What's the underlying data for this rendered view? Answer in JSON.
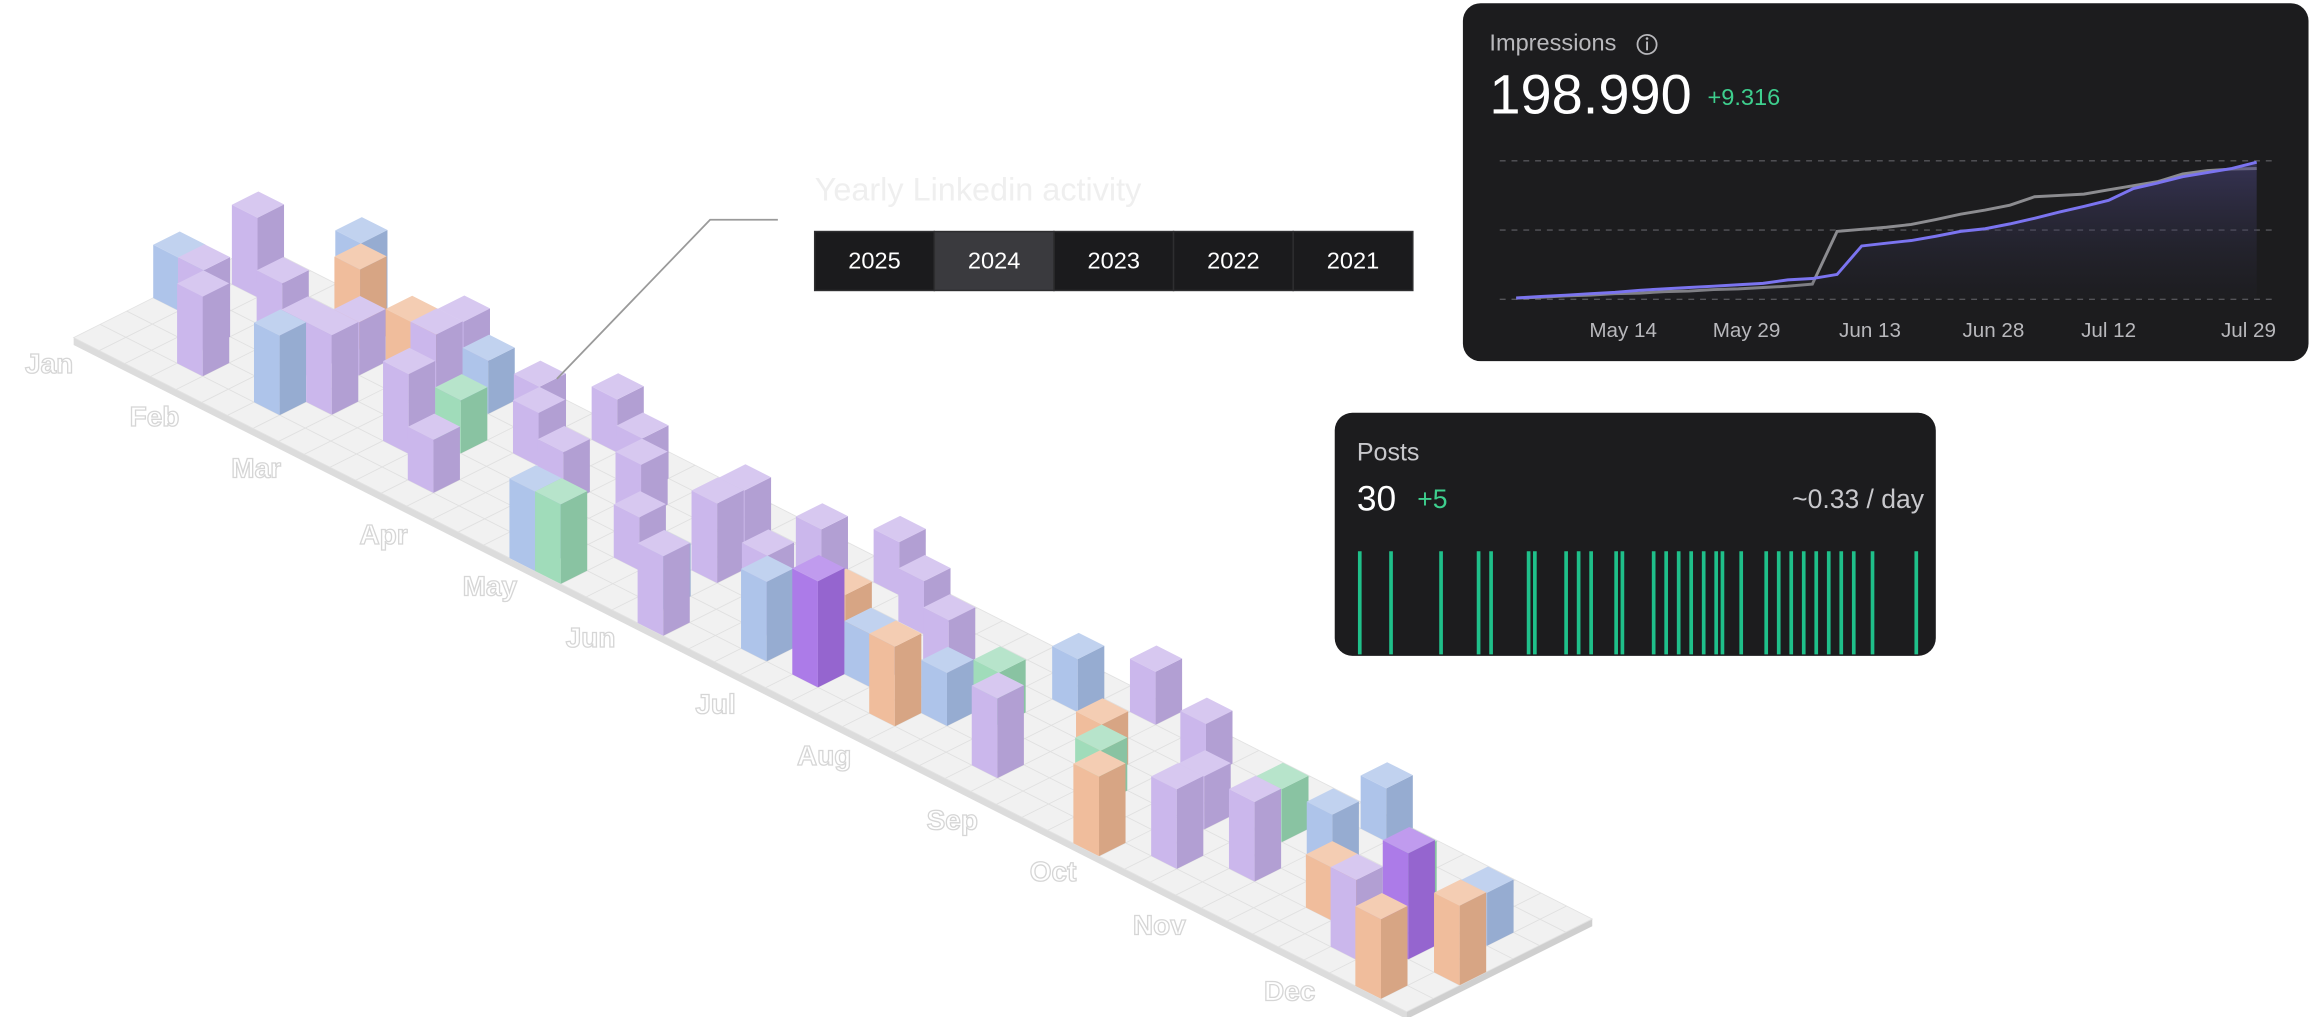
{
  "heading": "Yearly Linkedin activity",
  "year_tabs": {
    "items": [
      "2025",
      "2024",
      "2023",
      "2022",
      "2021"
    ],
    "selected_index": 1
  },
  "calendar": {
    "months": [
      "Jan",
      "Feb",
      "Mar",
      "Apr",
      "May",
      "Jun",
      "Jul",
      "Aug",
      "Sep",
      "Oct",
      "Nov",
      "Dec"
    ],
    "bars": [
      {
        "w": 0,
        "d": 3,
        "h": 2,
        "c": "#a7bfe8"
      },
      {
        "w": 1,
        "d": 5,
        "h": 3,
        "c": "#c6b1ea"
      },
      {
        "w": 2,
        "d": 2,
        "h": 3,
        "c": "#c6b1ea"
      },
      {
        "w": 3,
        "d": 1,
        "h": 3,
        "c": "#c6b1ea"
      },
      {
        "w": 3,
        "d": 4,
        "h": 2,
        "c": "#c6b1ea"
      },
      {
        "w": 4,
        "d": 6,
        "h": 3,
        "c": "#a7bfe8"
      },
      {
        "w": 5,
        "d": 5,
        "h": 3,
        "c": "#efb793"
      },
      {
        "w": 5,
        "d": 3,
        "h": 2,
        "c": "#c6b1ea"
      },
      {
        "w": 6,
        "d": 1,
        "h": 3,
        "c": "#a7bfe8"
      },
      {
        "w": 6,
        "d": 4,
        "h": 2,
        "c": "#c6b1ea"
      },
      {
        "w": 7,
        "d": 2,
        "h": 3,
        "c": "#c6b1ea"
      },
      {
        "w": 7,
        "d": 5,
        "h": 2,
        "c": "#efb793"
      },
      {
        "w": 8,
        "d": 6,
        "h": 2,
        "c": "#c6b1ea"
      },
      {
        "w": 9,
        "d": 4,
        "h": 3,
        "c": "#c6b1ea"
      },
      {
        "w": 10,
        "d": 5,
        "h": 2,
        "c": "#a7bfe8"
      },
      {
        "w": 10,
        "d": 2,
        "h": 3,
        "c": "#c6b1ea"
      },
      {
        "w": 11,
        "d": 3,
        "h": 2,
        "c": "#98d9b4"
      },
      {
        "w": 12,
        "d": 1,
        "h": 2,
        "c": "#c6b1ea"
      },
      {
        "w": 12,
        "d": 5,
        "h": 2,
        "c": "#c6b1ea"
      },
      {
        "w": 13,
        "d": 4,
        "h": 2,
        "c": "#c6b1ea"
      },
      {
        "w": 14,
        "d": 6,
        "h": 2,
        "c": "#c6b1ea"
      },
      {
        "w": 15,
        "d": 3,
        "h": 2,
        "c": "#c6b1ea"
      },
      {
        "w": 16,
        "d": 5,
        "h": 2,
        "c": "#c6b1ea"
      },
      {
        "w": 17,
        "d": 4,
        "h": 2,
        "c": "#c6b1ea"
      },
      {
        "w": 17,
        "d": 0,
        "h": 3,
        "c": "#a7bfe8"
      },
      {
        "w": 18,
        "d": 0,
        "h": 3,
        "c": "#98d9b4"
      },
      {
        "w": 19,
        "d": 2,
        "h": 2,
        "c": "#c6b1ea"
      },
      {
        "w": 20,
        "d": 5,
        "h": 2,
        "c": "#c6b1ea"
      },
      {
        "w": 21,
        "d": 1,
        "h": 2,
        "c": "#a7bfe8"
      },
      {
        "w": 21,
        "d": 3,
        "h": 3,
        "c": "#c6b1ea"
      },
      {
        "w": 22,
        "d": 0,
        "h": 3,
        "c": "#c6b1ea"
      },
      {
        "w": 23,
        "d": 5,
        "h": 2,
        "c": "#c6b1ea"
      },
      {
        "w": 24,
        "d": 2,
        "h": 3,
        "c": "#c6b1ea"
      },
      {
        "w": 25,
        "d": 1,
        "h": 3,
        "c": "#a7bfe8"
      },
      {
        "w": 25,
        "d": 6,
        "h": 2,
        "c": "#c6b1ea"
      },
      {
        "w": 26,
        "d": 3,
        "h": 2,
        "c": "#efb793"
      },
      {
        "w": 27,
        "d": 1,
        "h": 4,
        "c": "#a570e6"
      },
      {
        "w": 27,
        "d": 5,
        "h": 2,
        "c": "#c6b1ea"
      },
      {
        "w": 28,
        "d": 2,
        "h": 2,
        "c": "#a7bfe8"
      },
      {
        "w": 29,
        "d": 4,
        "h": 2,
        "c": "#c6b1ea"
      },
      {
        "w": 30,
        "d": 1,
        "h": 3,
        "c": "#efb793"
      },
      {
        "w": 31,
        "d": 2,
        "h": 2,
        "c": "#a7bfe8"
      },
      {
        "w": 32,
        "d": 3,
        "h": 2,
        "c": "#98d9b4"
      },
      {
        "w": 33,
        "d": 5,
        "h": 2,
        "c": "#a7bfe8"
      },
      {
        "w": 34,
        "d": 1,
        "h": 3,
        "c": "#c6b1ea"
      },
      {
        "w": 35,
        "d": 6,
        "h": 2,
        "c": "#c6b1ea"
      },
      {
        "w": 36,
        "d": 3,
        "h": 2,
        "c": "#efb793"
      },
      {
        "w": 37,
        "d": 2,
        "h": 2,
        "c": "#98d9b4"
      },
      {
        "w": 38,
        "d": 5,
        "h": 2,
        "c": "#c6b1ea"
      },
      {
        "w": 39,
        "d": 0,
        "h": 3,
        "c": "#efb793"
      },
      {
        "w": 40,
        "d": 3,
        "h": 2,
        "c": "#c6b1ea"
      },
      {
        "w": 41,
        "d": 1,
        "h": 3,
        "c": "#c6b1ea"
      },
      {
        "w": 42,
        "d": 4,
        "h": 2,
        "c": "#98d9b4"
      },
      {
        "w": 43,
        "d": 2,
        "h": 3,
        "c": "#c6b1ea"
      },
      {
        "w": 44,
        "d": 6,
        "h": 2,
        "c": "#a7bfe8"
      },
      {
        "w": 45,
        "d": 3,
        "h": 3,
        "c": "#a7bfe8"
      },
      {
        "w": 46,
        "d": 2,
        "h": 2,
        "c": "#efb793"
      },
      {
        "w": 47,
        "d": 4,
        "h": 2,
        "c": "#98d9b4"
      },
      {
        "w": 48,
        "d": 1,
        "h": 3,
        "c": "#c6b1ea"
      },
      {
        "w": 49,
        "d": 2,
        "h": 4,
        "c": "#a570e6"
      },
      {
        "w": 50,
        "d": 0,
        "h": 3,
        "c": "#efb793"
      },
      {
        "w": 50,
        "d": 4,
        "h": 2,
        "c": "#a7bfe8"
      },
      {
        "w": 51,
        "d": 2,
        "h": 3,
        "c": "#efb793"
      }
    ]
  },
  "impressions": {
    "title": "Impressions",
    "value": "198.990",
    "change": "+9.316",
    "chart": {
      "type": "line",
      "x": [
        0,
        3,
        6,
        9,
        12,
        15,
        18,
        21,
        24,
        27,
        30,
        33,
        36,
        39,
        42,
        45,
        48,
        51,
        54,
        57,
        60,
        63,
        66,
        69,
        72,
        75,
        78,
        81,
        84,
        87,
        90
      ],
      "xlim": [
        -2,
        92
      ],
      "ylim": [
        0,
        200000
      ],
      "xticks": [
        {
          "value": 13,
          "label": "May 14"
        },
        {
          "value": 28,
          "label": "May 29"
        },
        {
          "value": 43,
          "label": "Jun 13"
        },
        {
          "value": 58,
          "label": "Jun 28"
        },
        {
          "value": 72,
          "label": "Jul 12"
        },
        {
          "value": 89,
          "label": "Jul 29"
        }
      ],
      "series": [
        {
          "color": "#8c8c90",
          "values": [
            2000,
            3000,
            5000,
            6000,
            8000,
            9000,
            11000,
            12000,
            14000,
            15000,
            17000,
            19000,
            22000,
            98000,
            101000,
            104000,
            108000,
            115000,
            123000,
            129000,
            136000,
            148000,
            150000,
            152000,
            158000,
            164000,
            170000,
            181000,
            186000,
            188000,
            189000
          ]
        },
        {
          "color": "#7b74f0",
          "values": [
            2000,
            4000,
            6000,
            8000,
            10000,
            13000,
            15000,
            17000,
            19000,
            21000,
            23000,
            28000,
            30000,
            36000,
            77000,
            81000,
            85000,
            91000,
            98000,
            102000,
            109000,
            117000,
            126000,
            134000,
            143000,
            160000,
            168000,
            177000,
            183000,
            189000,
            198000
          ]
        }
      ]
    }
  },
  "posts": {
    "title": "Posts",
    "value": "30",
    "change": "+5",
    "rate": "~0.33 / day",
    "chart": {
      "type": "strip",
      "color": "#1fc08a",
      "xlim": [
        0,
        90
      ],
      "values": [
        0,
        5,
        13,
        19,
        21,
        27,
        28,
        33,
        35,
        37,
        41,
        42,
        47,
        49,
        51,
        53,
        55,
        57,
        58,
        61,
        65,
        67,
        69,
        71,
        73,
        75,
        77,
        79,
        82,
        89
      ]
    }
  }
}
